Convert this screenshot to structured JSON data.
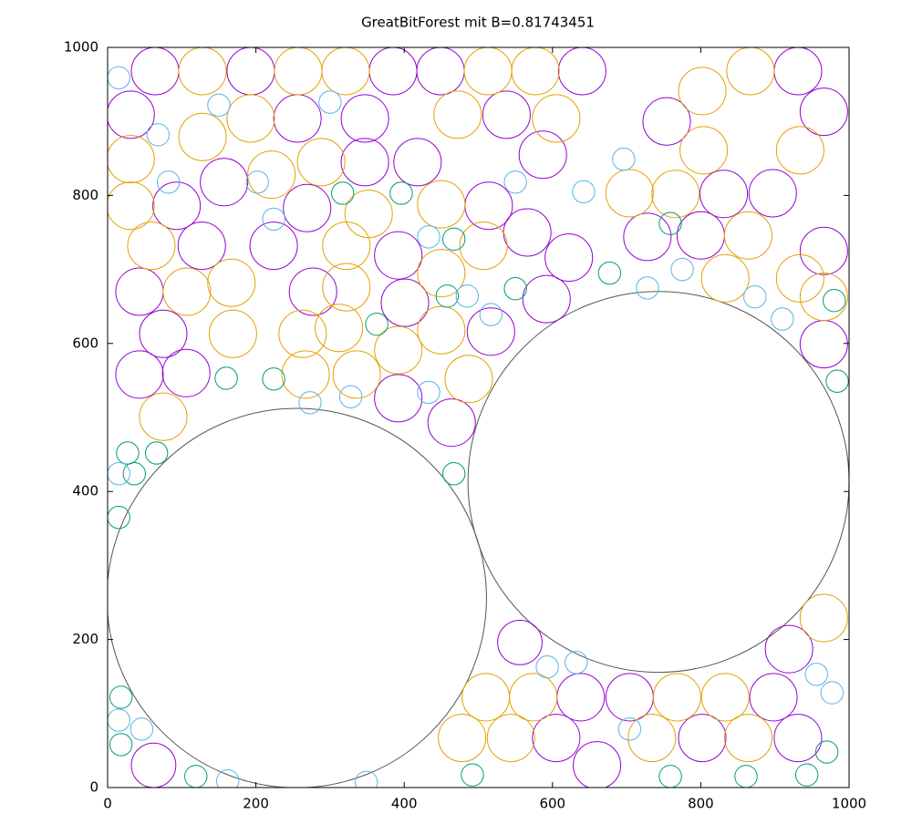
{
  "chart_data": {
    "type": "scatter",
    "title": "GreatBitForest mit B=0.81743451",
    "xlim": [
      0,
      1000
    ],
    "ylim": [
      0,
      1000
    ],
    "xticks": [
      0,
      200,
      400,
      600,
      800,
      1000
    ],
    "yticks": [
      0,
      200,
      400,
      600,
      800,
      1000
    ],
    "series": [
      {
        "color": "#555555",
        "x": [
          255,
          743
        ],
        "values": [
          256,
          413
        ],
        "sizes": [
          256,
          257
        ]
      },
      {
        "color": "#9400d3",
        "x": [
          64,
          193,
          385,
          449,
          640,
          931,
          31,
          256,
          347,
          538,
          754,
          966,
          347,
          418,
          587,
          157,
          93,
          269,
          514,
          831,
          897,
          127,
          224,
          392,
          566,
          622,
          728,
          800,
          966,
          43,
          277,
          401,
          592,
          75,
          517,
          966,
          43,
          106,
          392,
          464,
          556,
          638,
          704,
          898,
          919,
          605,
          802,
          931,
          62,
          660
        ],
        "values": [
          968,
          968,
          968,
          968,
          968,
          968,
          909,
          904,
          904,
          909,
          900,
          913,
          845,
          845,
          855,
          818,
          786,
          783,
          786,
          802,
          803,
          732,
          732,
          719,
          750,
          716,
          744,
          746,
          725,
          670,
          670,
          655,
          660,
          613,
          616,
          599,
          558,
          560,
          526,
          493,
          196,
          122,
          122,
          122,
          187,
          67,
          67,
          67,
          30,
          30
        ],
        "sizes": [
          32,
          32,
          32,
          32,
          32,
          32,
          32,
          32,
          32,
          32,
          32,
          32,
          32,
          32,
          32,
          32,
          32,
          32,
          32,
          32,
          32,
          32,
          32,
          32,
          32,
          32,
          32,
          32,
          32,
          32,
          32,
          32,
          32,
          32,
          32,
          32,
          32,
          32,
          32,
          32,
          30,
          32,
          32,
          32,
          32,
          32,
          32,
          32,
          30,
          32
        ]
      },
      {
        "color": "#e69f00",
        "x": [
          128,
          257,
          321,
          513,
          577,
          867,
          802,
          193,
          472,
          605,
          31,
          128,
          221,
          288,
          804,
          934,
          31,
          352,
          450,
          704,
          766,
          59,
          322,
          507,
          864,
          450,
          107,
          167,
          322,
          833,
          934,
          966,
          169,
          263,
          312,
          450,
          392,
          267,
          336,
          487,
          75,
          510,
          574,
          768,
          833,
          478,
          544,
          734,
          864,
          966
        ],
        "values": [
          968,
          968,
          968,
          968,
          968,
          968,
          941,
          904,
          909,
          904,
          849,
          879,
          828,
          845,
          861,
          861,
          786,
          775,
          788,
          803,
          802,
          732,
          732,
          732,
          746,
          695,
          670,
          682,
          676,
          688,
          688,
          663,
          613,
          613,
          621,
          618,
          591,
          558,
          558,
          552,
          501,
          122,
          122,
          122,
          122,
          67,
          67,
          67,
          67,
          229
        ],
        "sizes": [
          32,
          32,
          32,
          32,
          32,
          32,
          32,
          32,
          32,
          32,
          32,
          32,
          32,
          32,
          32,
          32,
          32,
          32,
          32,
          32,
          32,
          32,
          32,
          32,
          32,
          32,
          32,
          32,
          32,
          32,
          32,
          32,
          32,
          32,
          32,
          32,
          32,
          32,
          32,
          32,
          32,
          32,
          32,
          32,
          32,
          32,
          32,
          32,
          32,
          32
        ]
      },
      {
        "color": "#009e73",
        "x": [
          317,
          396,
          467,
          467,
          18,
          18,
          119,
          492,
          759,
          861,
          943,
          970,
          984,
          980,
          677,
          759,
          550,
          458,
          363,
          224,
          160,
          27,
          66,
          36,
          15
        ],
        "values": [
          803,
          803,
          741,
          424,
          122,
          58,
          15,
          17,
          15,
          15,
          17,
          48,
          549,
          658,
          695,
          762,
          674,
          664,
          626,
          552,
          553,
          452,
          452,
          424,
          365
        ],
        "sizes": [
          15,
          15,
          15,
          15,
          15,
          15,
          15,
          15,
          15,
          15,
          15,
          15,
          15,
          15,
          15,
          15,
          15,
          15,
          15,
          15,
          15,
          15,
          15,
          15,
          15
        ]
      },
      {
        "color": "#56b4e9",
        "x": [
          15,
          150,
          300,
          68,
          82,
          202,
          224,
          433,
          485,
          517,
          550,
          642,
          696,
          728,
          775,
          873,
          910,
          956,
          977,
          15,
          15,
          46,
          162,
          349,
          593,
          632,
          704,
          433,
          328,
          273
        ],
        "values": [
          959,
          922,
          926,
          882,
          818,
          818,
          768,
          744,
          664,
          639,
          818,
          805,
          849,
          675,
          700,
          663,
          633,
          153,
          128,
          424,
          91,
          79,
          9,
          7,
          163,
          169,
          79,
          534,
          528,
          520
        ],
        "sizes": [
          15,
          15,
          15,
          15,
          15,
          15,
          15,
          15,
          15,
          15,
          15,
          15,
          15,
          15,
          15,
          15,
          15,
          15,
          15,
          15,
          15,
          15,
          15,
          15,
          15,
          15,
          15,
          15,
          15,
          15
        ]
      }
    ]
  }
}
